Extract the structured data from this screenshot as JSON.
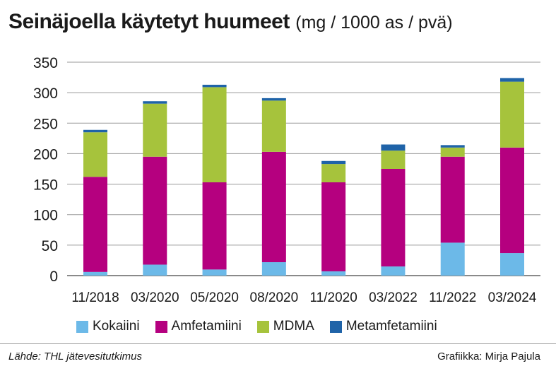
{
  "header": {
    "title": "Seinäjoella käytetyt huumeet",
    "unit": "(mg / 1000 as / pvä)"
  },
  "footer": {
    "source": "Lähde: THL jätevesitutkimus",
    "credit": "Grafiikka: Mirja Pajula"
  },
  "chart_data": {
    "type": "bar",
    "stacked": true,
    "title": "Seinäjoella käytetyt huumeet",
    "ylabel": "mg / 1000 as / pvä",
    "xlabel": "",
    "ylim": [
      0,
      350
    ],
    "yticks": [
      "0",
      "50",
      "100",
      "150",
      "200",
      "250",
      "300",
      "350"
    ],
    "grid": true,
    "legend_position": "bottom",
    "categories": [
      "11/2018",
      "03/2020",
      "05/2020",
      "08/2020",
      "11/2020",
      "03/2022",
      "11/2022",
      "03/2024"
    ],
    "series": [
      {
        "name": "Kokaiini",
        "color": "#6cb9e8",
        "values": [
          6,
          18,
          10,
          22,
          7,
          15,
          54,
          37
        ]
      },
      {
        "name": "Amfetamiini",
        "color": "#b5007f",
        "values": [
          156,
          177,
          143,
          181,
          146,
          160,
          141,
          173
        ]
      },
      {
        "name": "MDMA",
        "color": "#a6c33c",
        "values": [
          73,
          87,
          156,
          84,
          30,
          30,
          15,
          108
        ]
      },
      {
        "name": "Metamfetamiini",
        "color": "#1f63a8",
        "values": [
          4,
          4,
          4,
          4,
          5,
          10,
          4,
          6
        ]
      }
    ]
  }
}
